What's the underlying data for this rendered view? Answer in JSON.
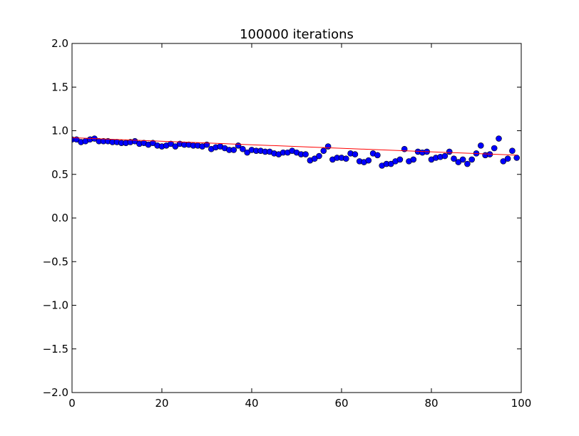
{
  "chart_data": {
    "type": "scatter",
    "title": "100000 iterations",
    "xlabel": "",
    "ylabel": "",
    "xlim": [
      0,
      100
    ],
    "ylim": [
      -2.0,
      2.0
    ],
    "x_ticks": [
      0,
      20,
      40,
      60,
      80,
      100
    ],
    "x_tick_labels": [
      "0",
      "20",
      "40",
      "60",
      "80",
      "100"
    ],
    "y_ticks": [
      -2.0,
      -1.5,
      -1.0,
      -0.5,
      0.0,
      0.5,
      1.0,
      1.5,
      2.0
    ],
    "y_tick_labels": [
      "−2.0",
      "−1.5",
      "−1.0",
      "−0.5",
      "0.0",
      "0.5",
      "1.0",
      "1.5",
      "2.0"
    ],
    "grid": false,
    "series": [
      {
        "marker_color": "#0000ff",
        "x": [
          0,
          1,
          2,
          3,
          4,
          5,
          6,
          7,
          8,
          9,
          10,
          11,
          12,
          13,
          14,
          15,
          16,
          17,
          18,
          19,
          20,
          21,
          22,
          23,
          24,
          25,
          26,
          27,
          28,
          29,
          30,
          31,
          32,
          33,
          34,
          35,
          36,
          37,
          38,
          39,
          40,
          41,
          42,
          43,
          44,
          45,
          46,
          47,
          48,
          49,
          50,
          51,
          52,
          53,
          54,
          55,
          56,
          57,
          58,
          59,
          60,
          61,
          62,
          63,
          64,
          65,
          66,
          67,
          68,
          69,
          70,
          71,
          72,
          73,
          74,
          75,
          76,
          77,
          78,
          79,
          80,
          81,
          82,
          83,
          84,
          85,
          86,
          87,
          88,
          89,
          90,
          91,
          92,
          93,
          94,
          95,
          96,
          97,
          98,
          99
        ],
        "y": [
          0.9,
          0.9,
          0.87,
          0.88,
          0.9,
          0.91,
          0.88,
          0.88,
          0.88,
          0.87,
          0.87,
          0.86,
          0.86,
          0.87,
          0.88,
          0.85,
          0.86,
          0.84,
          0.86,
          0.83,
          0.82,
          0.83,
          0.85,
          0.82,
          0.85,
          0.84,
          0.84,
          0.83,
          0.83,
          0.82,
          0.84,
          0.79,
          0.81,
          0.82,
          0.8,
          0.78,
          0.78,
          0.83,
          0.79,
          0.75,
          0.78,
          0.77,
          0.77,
          0.76,
          0.76,
          0.74,
          0.73,
          0.75,
          0.75,
          0.77,
          0.75,
          0.73,
          0.73,
          0.66,
          0.68,
          0.71,
          0.77,
          0.82,
          0.67,
          0.69,
          0.69,
          0.68,
          0.74,
          0.73,
          0.65,
          0.64,
          0.66,
          0.74,
          0.72,
          0.6,
          0.62,
          0.62,
          0.65,
          0.67,
          0.79,
          0.65,
          0.67,
          0.76,
          0.75,
          0.76,
          0.67,
          0.69,
          0.7,
          0.71,
          0.76,
          0.68,
          0.64,
          0.67,
          0.62,
          0.67,
          0.74,
          0.83,
          0.72,
          0.73,
          0.8,
          0.91,
          0.65,
          0.68,
          0.77,
          0.69
        ]
      },
      {
        "line_color": "#ff0000",
        "x": [
          0,
          99
        ],
        "y": [
          0.92,
          0.72
        ]
      }
    ]
  }
}
